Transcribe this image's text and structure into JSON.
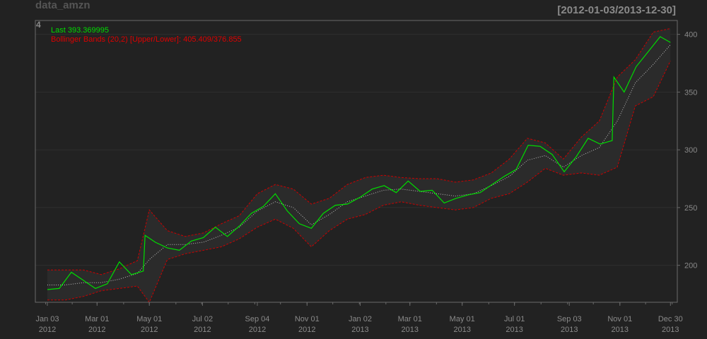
{
  "header": {
    "title": "data_amzn",
    "date_range": "[2012-01-03/2013-12-30]",
    "panel_number": "4"
  },
  "legend": {
    "last_label": "Last 393.369995",
    "bbands_label": "Bollinger Bands (20,2) [Upper/Lower]: 405.409/376.855"
  },
  "colors": {
    "background": "#222222",
    "grid": "#2f2f2f",
    "axis": "#6a6a6a",
    "text": "#8a8a8a",
    "price": "#00dd00",
    "bands": "#cc0000",
    "middle": "#bbbbbb"
  },
  "chart_data": {
    "type": "line",
    "x_label_dates": [
      "2012-01-03",
      "2012-03-01",
      "2012-05-01",
      "2012-07-02",
      "2012-09-04",
      "2012-11-01",
      "2013-01-02",
      "2013-03-01",
      "2013-05-01",
      "2013-07-01",
      "2013-09-03",
      "2013-11-01",
      "2013-12-30"
    ],
    "x_labels": [
      {
        "month": "Jan 03",
        "year": "2012"
      },
      {
        "month": "Mar 01",
        "year": "2012"
      },
      {
        "month": "May 01",
        "year": "2012"
      },
      {
        "month": "Jul 02",
        "year": "2012"
      },
      {
        "month": "Sep 04",
        "year": "2012"
      },
      {
        "month": "Nov 01",
        "year": "2012"
      },
      {
        "month": "Jan 02",
        "year": "2013"
      },
      {
        "month": "Mar 01",
        "year": "2013"
      },
      {
        "month": "May 01",
        "year": "2013"
      },
      {
        "month": "Jul 01",
        "year": "2013"
      },
      {
        "month": "Sep 03",
        "year": "2013"
      },
      {
        "month": "Nov 01",
        "year": "2013"
      },
      {
        "month": "Dec 30",
        "year": "2013"
      }
    ],
    "y_ticks": [
      200,
      250,
      300,
      350,
      400
    ],
    "ylim": [
      168,
      412
    ],
    "xlim": [
      "2011-12-20",
      "2014-01-07"
    ],
    "grid": true,
    "legend_position": "top-left",
    "series": [
      {
        "name": "Last",
        "x": [
          "2012-01-03",
          "2012-01-17",
          "2012-01-31",
          "2012-02-14",
          "2012-02-28",
          "2012-03-13",
          "2012-03-27",
          "2012-04-10",
          "2012-04-24",
          "2012-04-26",
          "2012-05-08",
          "2012-05-22",
          "2012-06-05",
          "2012-06-19",
          "2012-07-03",
          "2012-07-17",
          "2012-07-31",
          "2012-08-14",
          "2012-08-28",
          "2012-09-11",
          "2012-09-25",
          "2012-10-09",
          "2012-10-23",
          "2012-11-06",
          "2012-11-20",
          "2012-12-04",
          "2012-12-18",
          "2013-01-02",
          "2013-01-16",
          "2013-01-30",
          "2013-02-13",
          "2013-02-27",
          "2013-03-13",
          "2013-03-27",
          "2013-04-10",
          "2013-04-24",
          "2013-05-08",
          "2013-05-22",
          "2013-06-05",
          "2013-06-19",
          "2013-07-03",
          "2013-07-17",
          "2013-07-31",
          "2013-08-14",
          "2013-08-28",
          "2013-09-11",
          "2013-09-25",
          "2013-10-09",
          "2013-10-23",
          "2013-10-25",
          "2013-11-06",
          "2013-11-20",
          "2013-12-04",
          "2013-12-18",
          "2013-12-30"
        ],
        "values": [
          179,
          180,
          194,
          187,
          180,
          184,
          203,
          192,
          195,
          226,
          220,
          215,
          213,
          221,
          224,
          233,
          225,
          234,
          245,
          251,
          262,
          247,
          236,
          232,
          245,
          252,
          253,
          259,
          266,
          269,
          263,
          273,
          264,
          265,
          254,
          258,
          261,
          263,
          270,
          277,
          283,
          304,
          303,
          296,
          281,
          294,
          310,
          305,
          308,
          363,
          350,
          372,
          385,
          398,
          393
        ]
      },
      {
        "name": "Upper",
        "x": [
          "2012-01-03",
          "2012-01-24",
          "2012-02-14",
          "2012-03-06",
          "2012-03-27",
          "2012-04-17",
          "2012-05-01",
          "2012-05-22",
          "2012-06-12",
          "2012-07-03",
          "2012-07-24",
          "2012-08-14",
          "2012-09-04",
          "2012-09-25",
          "2012-10-16",
          "2012-11-06",
          "2012-11-27",
          "2012-12-18",
          "2013-01-08",
          "2013-01-29",
          "2013-02-19",
          "2013-03-12",
          "2013-04-02",
          "2013-04-23",
          "2013-05-14",
          "2013-06-04",
          "2013-06-25",
          "2013-07-16",
          "2013-08-06",
          "2013-08-27",
          "2013-09-17",
          "2013-10-08",
          "2013-10-29",
          "2013-11-19",
          "2013-12-10",
          "2013-12-30"
        ],
        "values": [
          196,
          196,
          196,
          192,
          197,
          204,
          248,
          230,
          225,
          228,
          236,
          243,
          262,
          270,
          266,
          253,
          258,
          270,
          276,
          278,
          276,
          275,
          275,
          272,
          274,
          280,
          292,
          310,
          306,
          292,
          311,
          325,
          363,
          378,
          402,
          405
        ]
      },
      {
        "name": "Lower",
        "x": [
          "2012-01-03",
          "2012-01-24",
          "2012-02-14",
          "2012-03-06",
          "2012-03-27",
          "2012-04-17",
          "2012-05-01",
          "2012-05-22",
          "2012-06-12",
          "2012-07-03",
          "2012-07-24",
          "2012-08-14",
          "2012-09-04",
          "2012-09-25",
          "2012-10-16",
          "2012-11-06",
          "2012-11-27",
          "2012-12-18",
          "2013-01-08",
          "2013-01-29",
          "2013-02-19",
          "2013-03-12",
          "2013-04-02",
          "2013-04-23",
          "2013-05-14",
          "2013-06-04",
          "2013-06-25",
          "2013-07-16",
          "2013-08-06",
          "2013-08-27",
          "2013-09-17",
          "2013-10-08",
          "2013-10-29",
          "2013-11-19",
          "2013-12-10",
          "2013-12-30"
        ],
        "values": [
          170,
          170,
          173,
          178,
          180,
          182,
          168,
          205,
          210,
          213,
          216,
          223,
          233,
          240,
          232,
          216,
          230,
          240,
          244,
          252,
          255,
          252,
          250,
          248,
          250,
          258,
          262,
          272,
          284,
          278,
          280,
          278,
          285,
          338,
          346,
          377
        ]
      },
      {
        "name": "Middle",
        "x": [
          "2012-01-03",
          "2012-01-24",
          "2012-02-14",
          "2012-03-06",
          "2012-03-27",
          "2012-04-17",
          "2012-05-01",
          "2012-05-22",
          "2012-06-12",
          "2012-07-03",
          "2012-07-24",
          "2012-08-14",
          "2012-09-04",
          "2012-09-25",
          "2012-10-16",
          "2012-11-06",
          "2012-11-27",
          "2012-12-18",
          "2013-01-08",
          "2013-01-29",
          "2013-02-19",
          "2013-03-12",
          "2013-04-02",
          "2013-04-23",
          "2013-05-14",
          "2013-06-04",
          "2013-06-25",
          "2013-07-16",
          "2013-08-06",
          "2013-08-27",
          "2013-09-17",
          "2013-10-08",
          "2013-10-29",
          "2013-11-19",
          "2013-12-10",
          "2013-12-30"
        ],
        "values": [
          183,
          183,
          185,
          185,
          188,
          193,
          205,
          218,
          218,
          220,
          226,
          233,
          247,
          255,
          250,
          235,
          244,
          255,
          260,
          265,
          266,
          264,
          262,
          260,
          262,
          269,
          277,
          291,
          295,
          285,
          295,
          302,
          325,
          358,
          374,
          391
        ]
      }
    ]
  }
}
